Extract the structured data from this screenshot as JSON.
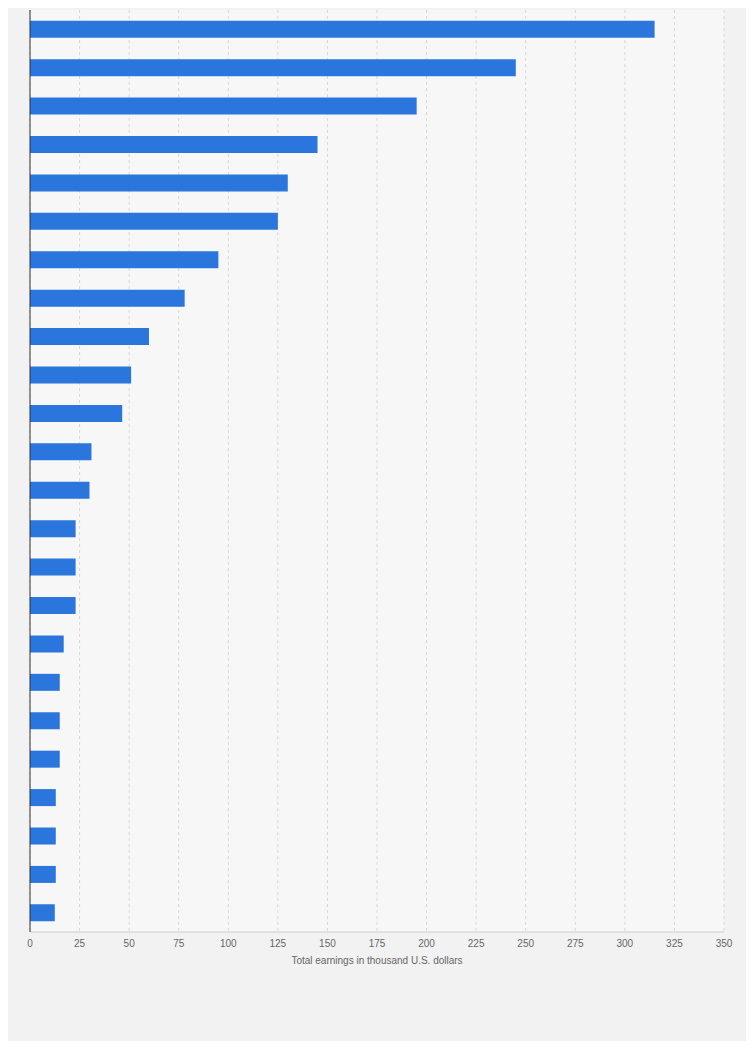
{
  "chart_data": {
    "type": "bar",
    "orientation": "horizontal",
    "x_label": "Total earnings in thousand U.S. dollars",
    "categories": [
      null,
      null,
      null,
      null,
      null,
      null,
      null,
      null,
      null,
      null,
      null,
      null,
      null,
      null,
      null,
      null,
      null,
      null,
      null,
      null,
      null,
      null,
      null,
      null
    ],
    "values": [
      315,
      245,
      195,
      145,
      130,
      125,
      95,
      78,
      60,
      51,
      46.5,
      31,
      30,
      23,
      23,
      23,
      17,
      15,
      15,
      15,
      13,
      13,
      13,
      12.5
    ],
    "color": "#2a76dd",
    "xlim": [
      0,
      350
    ],
    "xticks": [
      0,
      25,
      50,
      75,
      100,
      125,
      150,
      175,
      200,
      225,
      250,
      275,
      300,
      325,
      350
    ],
    "grid": true,
    "tick_labels": "x"
  }
}
